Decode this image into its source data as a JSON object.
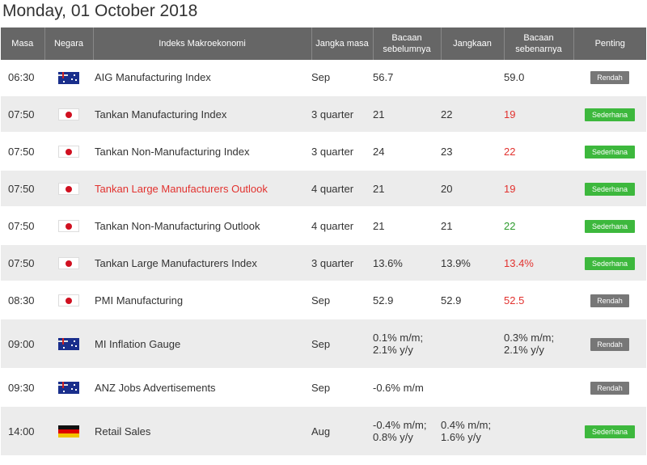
{
  "page": {
    "title": "Monday, 01 October 2018"
  },
  "table": {
    "headers": [
      "Masa",
      "Negara",
      "Indeks Makroekonomi",
      "Jangka masa",
      "Bacaan sebelumnya",
      "Jangkaan",
      "Bacaan sebenarnya",
      "Penting"
    ],
    "rows": [
      {
        "time": "06:30",
        "country": "Australia",
        "flag_icon": "australia-flag-icon",
        "index": "AIG Manufacturing Index",
        "period": "Sep",
        "previous": "56.7",
        "forecast": "",
        "actual": "59.0",
        "importance": "Rendah"
      },
      {
        "time": "07:50",
        "country": "Japan",
        "flag_icon": "japan-flag-icon",
        "index": "Tankan Manufacturing Index",
        "period": "3 quarter",
        "previous": "21",
        "forecast": "22",
        "actual": "19",
        "importance": "Sederhana"
      },
      {
        "time": "07:50",
        "country": "Japan",
        "flag_icon": "japan-flag-icon",
        "index": "Tankan Non-Manufacturing Index",
        "period": "3 quarter",
        "previous": "24",
        "forecast": "23",
        "actual": "22",
        "importance": "Sederhana"
      },
      {
        "time": "07:50",
        "country": "Japan",
        "flag_icon": "japan-flag-icon",
        "index": "Tankan Large Manufacturers Outlook",
        "period": "4 quarter",
        "previous": "21",
        "forecast": "20",
        "actual": "19",
        "importance": "Sederhana"
      },
      {
        "time": "07:50",
        "country": "Japan",
        "flag_icon": "japan-flag-icon",
        "index": "Tankan Non-Manufacturing Outlook",
        "period": "4 quarter",
        "previous": "21",
        "forecast": "21",
        "actual": "22",
        "importance": "Sederhana"
      },
      {
        "time": "07:50",
        "country": "Japan",
        "flag_icon": "japan-flag-icon",
        "index": "Tankan Large Manufacturers Index",
        "period": "3 quarter",
        "previous": "13.6%",
        "forecast": "13.9%",
        "actual": "13.4%",
        "importance": "Sederhana"
      },
      {
        "time": "08:30",
        "country": "Japan",
        "flag_icon": "japan-flag-icon",
        "index": "PMI Manufacturing",
        "period": "Sep",
        "previous": "52.9",
        "forecast": "52.9",
        "actual": "52.5",
        "importance": "Rendah"
      },
      {
        "time": "09:00",
        "country": "Australia",
        "flag_icon": "australia-flag-icon",
        "index": "MI Inflation Gauge",
        "period": "Sep",
        "previous": "0.1% m/m; 2.1% y/y",
        "forecast": "",
        "actual": "0.3% m/m; 2.1% y/y",
        "importance": "Rendah"
      },
      {
        "time": "09:30",
        "country": "Australia",
        "flag_icon": "australia-flag-icon",
        "index": "ANZ Jobs Advertisements",
        "period": "Sep",
        "previous": "-0.6% m/m",
        "forecast": "",
        "actual": "",
        "importance": "Rendah"
      },
      {
        "time": "14:00",
        "country": "Germany",
        "flag_icon": "germany-flag-icon",
        "index": "Retail Sales",
        "period": "Aug",
        "previous": "-0.4% m/m; 0.8% y/y",
        "forecast": "0.4% m/m; 1.6% y/y",
        "actual": "",
        "importance": "Sederhana"
      }
    ]
  },
  "colors": {
    "header_bg": "#666666",
    "row_alt_bg": "#ececec",
    "worse": "#e2322f",
    "better": "#2d9b2d",
    "badge_low": "#777777",
    "badge_medium": "#3db83d"
  }
}
